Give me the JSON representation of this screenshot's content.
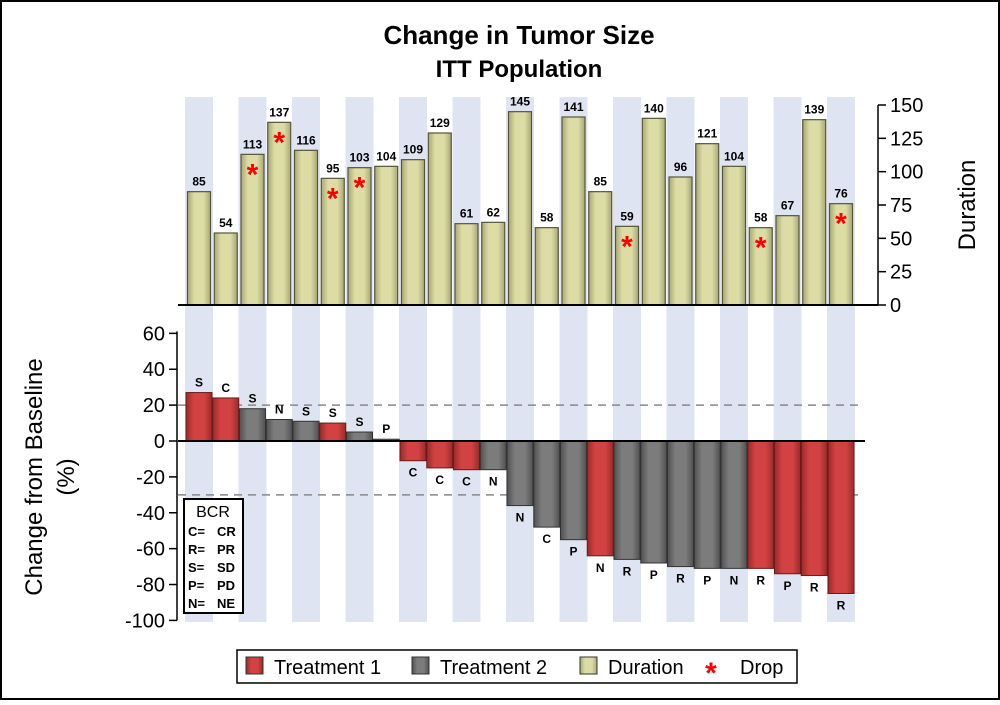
{
  "chart_data": [
    {
      "type": "bar",
      "title": "Change in Tumor Size",
      "subtitle": "ITT Population",
      "ylabel": "Duration",
      "y_axis_side": "right",
      "ylim": [
        0,
        150
      ],
      "yticks": [
        0,
        25,
        50,
        75,
        100,
        125,
        150
      ],
      "values": [
        85,
        54,
        113,
        137,
        116,
        95,
        103,
        104,
        109,
        129,
        61,
        62,
        145,
        58,
        141,
        85,
        59,
        140,
        96,
        121,
        104,
        58,
        67,
        139,
        76
      ],
      "drop": [
        false,
        false,
        true,
        true,
        false,
        true,
        true,
        false,
        false,
        false,
        false,
        false,
        false,
        false,
        false,
        false,
        true,
        false,
        false,
        false,
        false,
        true,
        false,
        false,
        true
      ],
      "bar_color": "#d8d8a0",
      "drop_color": "#ff0000",
      "band_color": "#dfe4f2",
      "grid": false
    },
    {
      "type": "bar",
      "ylabel": "Change from Baseline (%)",
      "ylabel_lines": [
        "Change from Baseline",
        "(%)"
      ],
      "ylim": [
        -100,
        60
      ],
      "yticks": [
        -100,
        -80,
        -60,
        -40,
        -20,
        0,
        20,
        40,
        60
      ],
      "reference_lines": [
        20,
        -30
      ],
      "values": [
        27,
        24,
        18,
        12,
        11,
        10,
        5,
        1,
        -11,
        -15,
        -16,
        -16,
        -36,
        -48,
        -55,
        -64,
        -66,
        -68,
        -70,
        -71,
        -71,
        -71,
        -74,
        -75,
        -85
      ],
      "groups": [
        "Treatment 1",
        "Treatment 1",
        "Treatment 2",
        "Treatment 2",
        "Treatment 2",
        "Treatment 1",
        "Treatment 2",
        "Treatment 2",
        "Treatment 1",
        "Treatment 1",
        "Treatment 1",
        "Treatment 2",
        "Treatment 2",
        "Treatment 2",
        "Treatment 2",
        "Treatment 1",
        "Treatment 2",
        "Treatment 2",
        "Treatment 2",
        "Treatment 2",
        "Treatment 2",
        "Treatment 1",
        "Treatment 1",
        "Treatment 1",
        "Treatment 1"
      ],
      "labels": [
        "S",
        "C",
        "S",
        "N",
        "S",
        "S",
        "S",
        "P",
        "C",
        "C",
        "C",
        "N",
        "N",
        "C",
        "P",
        "N",
        "R",
        "P",
        "R",
        "P",
        "N",
        "R",
        "P",
        "R",
        "R"
      ],
      "group_colors": {
        "Treatment 1": "#cc3b3b",
        "Treatment 2": "#787878"
      },
      "grid": false
    }
  ],
  "bcr_legend": {
    "title": "BCR",
    "rows": [
      {
        "code": "C=",
        "meaning": "CR"
      },
      {
        "code": "R=",
        "meaning": "PR"
      },
      {
        "code": "S=",
        "meaning": "SD"
      },
      {
        "code": "P=",
        "meaning": "PD"
      },
      {
        "code": "N=",
        "meaning": "NE"
      }
    ]
  },
  "legend": {
    "position": "bottom",
    "items": [
      {
        "label": "Treatment 1",
        "color": "#cc3b3b",
        "symbol": "box"
      },
      {
        "label": "Treatment 2",
        "color": "#787878",
        "symbol": "box"
      },
      {
        "label": "Duration",
        "color": "#d8d8a0",
        "symbol": "box"
      },
      {
        "label": "Drop",
        "color": "#ff0000",
        "symbol": "*"
      }
    ]
  }
}
